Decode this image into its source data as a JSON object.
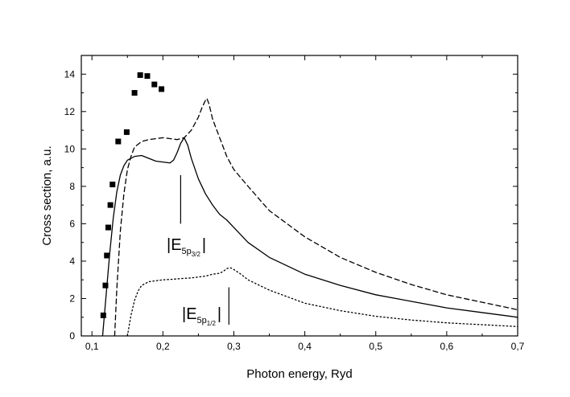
{
  "chart_data": {
    "type": "line",
    "title": "",
    "xlabel": "Photon energy, Ryd",
    "ylabel": "Cross section, a.u.",
    "xlim": [
      0.085,
      0.7
    ],
    "ylim": [
      0,
      15
    ],
    "x_ticks": [
      0.1,
      0.2,
      0.3,
      0.4,
      0.5,
      0.6,
      0.7
    ],
    "x_tick_labels": [
      "0,1",
      "0,2",
      "0,3",
      "0,4",
      "0,5",
      "0,6",
      "0,7"
    ],
    "y_ticks": [
      0,
      2,
      4,
      6,
      8,
      10,
      12,
      14
    ],
    "y_tick_labels": [
      "0",
      "2",
      "4",
      "6",
      "8",
      "10",
      "12",
      "14"
    ],
    "grid": false,
    "series": [
      {
        "name": "solid",
        "style": "solid",
        "x": [
          0.115,
          0.12,
          0.125,
          0.13,
          0.135,
          0.14,
          0.145,
          0.15,
          0.16,
          0.17,
          0.18,
          0.19,
          0.2,
          0.21,
          0.215,
          0.22,
          0.225,
          0.23,
          0.235,
          0.24,
          0.25,
          0.26,
          0.27,
          0.28,
          0.29,
          0.3,
          0.32,
          0.35,
          0.4,
          0.45,
          0.5,
          0.55,
          0.6,
          0.65,
          0.7
        ],
        "y": [
          0,
          2.2,
          4.4,
          6.3,
          7.7,
          8.6,
          9.1,
          9.4,
          9.6,
          9.65,
          9.5,
          9.35,
          9.3,
          9.25,
          9.4,
          9.8,
          10.3,
          10.6,
          10.2,
          9.5,
          8.4,
          7.6,
          7.0,
          6.5,
          6.2,
          5.8,
          5.0,
          4.2,
          3.3,
          2.7,
          2.2,
          1.85,
          1.5,
          1.25,
          1.0
        ]
      },
      {
        "name": "dashed",
        "style": "dashed",
        "x": [
          0.132,
          0.135,
          0.14,
          0.145,
          0.15,
          0.155,
          0.16,
          0.17,
          0.18,
          0.19,
          0.2,
          0.21,
          0.22,
          0.23,
          0.24,
          0.25,
          0.255,
          0.26,
          0.262,
          0.265,
          0.27,
          0.28,
          0.29,
          0.3,
          0.32,
          0.35,
          0.4,
          0.45,
          0.5,
          0.55,
          0.6,
          0.65,
          0.7
        ],
        "y": [
          0,
          2.5,
          5.6,
          7.6,
          8.9,
          9.6,
          10.1,
          10.4,
          10.5,
          10.55,
          10.6,
          10.55,
          10.5,
          10.6,
          11.0,
          11.7,
          12.2,
          12.6,
          12.7,
          12.4,
          11.6,
          10.6,
          9.6,
          8.9,
          8.0,
          6.7,
          5.3,
          4.2,
          3.4,
          2.75,
          2.2,
          1.8,
          1.4
        ]
      },
      {
        "name": "dotted",
        "style": "dotted",
        "x": [
          0.15,
          0.155,
          0.16,
          0.165,
          0.17,
          0.18,
          0.19,
          0.2,
          0.21,
          0.22,
          0.23,
          0.24,
          0.25,
          0.26,
          0.27,
          0.28,
          0.285,
          0.29,
          0.295,
          0.3,
          0.31,
          0.32,
          0.35,
          0.4,
          0.45,
          0.5,
          0.55,
          0.6,
          0.65,
          0.7
        ],
        "y": [
          0,
          1.1,
          1.9,
          2.4,
          2.7,
          2.9,
          2.95,
          3.0,
          3.02,
          3.05,
          3.08,
          3.1,
          3.15,
          3.2,
          3.3,
          3.35,
          3.45,
          3.6,
          3.65,
          3.55,
          3.3,
          3.0,
          2.45,
          1.75,
          1.35,
          1.05,
          0.85,
          0.7,
          0.6,
          0.5
        ]
      },
      {
        "name": "experiment",
        "style": "markers",
        "marker": "square",
        "x": [
          0.116,
          0.119,
          0.121,
          0.123,
          0.126,
          0.129,
          0.137,
          0.149,
          0.16,
          0.168,
          0.178,
          0.188,
          0.198
        ],
        "y": [
          1.1,
          2.7,
          4.3,
          5.8,
          7.0,
          8.1,
          10.4,
          10.9,
          13.0,
          13.95,
          13.9,
          13.45,
          13.2
        ]
      }
    ],
    "annotations": [
      {
        "label": "|E5p3/2|",
        "parts": {
          "open": "|E",
          "sub": "5p",
          "subsub": "3/2",
          "close": "|"
        },
        "marker_x": 0.225,
        "marker_y": [
          6.0,
          8.6
        ]
      },
      {
        "label": "|E5p1/2|",
        "parts": {
          "open": "|E",
          "sub": "5p",
          "subsub": "1/2",
          "close": "|"
        },
        "marker_x": 0.293,
        "marker_y": [
          0.6,
          2.6
        ]
      }
    ]
  }
}
